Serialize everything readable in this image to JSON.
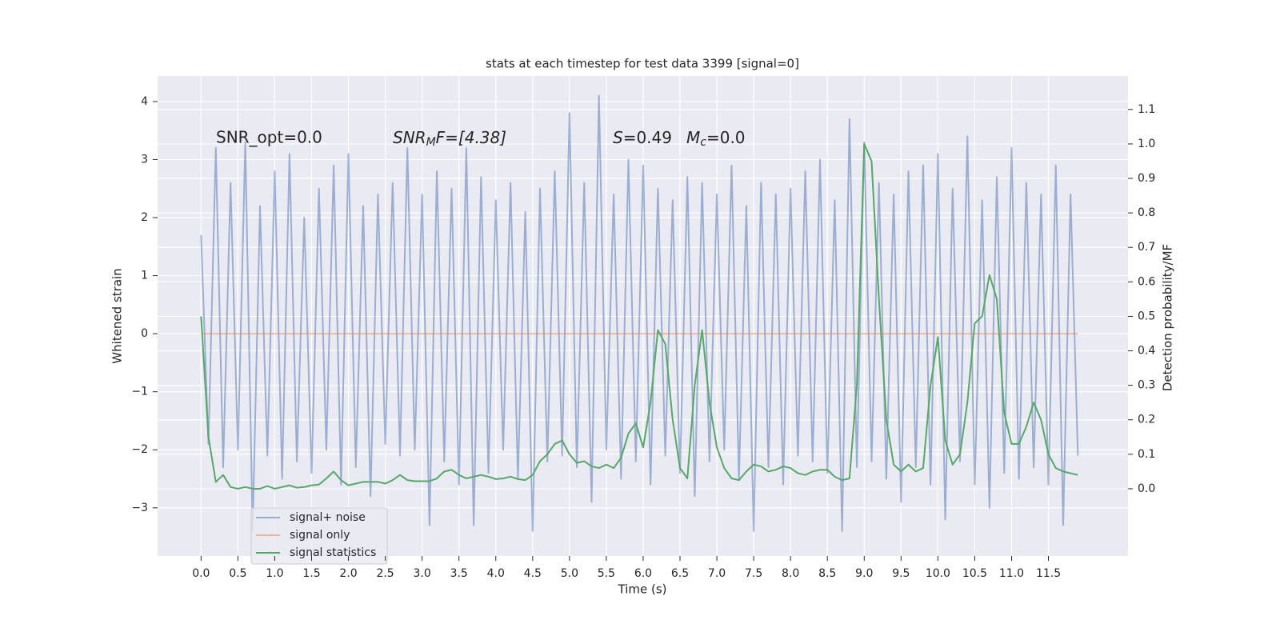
{
  "chart_data": {
    "type": "line",
    "title": "stats at each timestep for test data 3399 [signal=0]",
    "xlabel": "Time (s)",
    "ylabel": "Whitened strain",
    "y2label": "Detection probability/MF",
    "annotations": [
      {
        "text": "SNR_opt=0.0"
      },
      {
        "parts": [
          "SNR",
          "M",
          "F=[4.38]"
        ]
      },
      {
        "parts": [
          "S",
          "=0.49"
        ]
      },
      {
        "parts": [
          "M",
          "c",
          "=0.0"
        ]
      }
    ],
    "x": [
      0,
      0.1,
      0.2,
      0.3,
      0.4,
      0.5,
      0.6,
      0.7,
      0.8,
      0.9,
      1,
      1.1,
      1.2,
      1.3,
      1.4,
      1.5,
      1.6,
      1.7,
      1.8,
      1.9,
      2,
      2.1,
      2.2,
      2.3,
      2.4,
      2.5,
      2.6,
      2.7,
      2.8,
      2.9,
      3,
      3.1,
      3.2,
      3.3,
      3.4,
      3.5,
      3.6,
      3.7,
      3.8,
      3.9,
      4,
      4.1,
      4.2,
      4.3,
      4.4,
      4.5,
      4.6,
      4.7,
      4.8,
      4.9,
      5,
      5.1,
      5.2,
      5.3,
      5.4,
      5.5,
      5.6,
      5.7,
      5.8,
      5.9,
      6,
      6.1,
      6.2,
      6.3,
      6.4,
      6.5,
      6.6,
      6.7,
      6.8,
      6.9,
      7,
      7.1,
      7.2,
      7.3,
      7.4,
      7.5,
      7.6,
      7.7,
      7.8,
      7.9,
      8,
      8.1,
      8.2,
      8.3,
      8.4,
      8.5,
      8.6,
      8.7,
      8.8,
      8.9,
      9,
      9.1,
      9.2,
      9.3,
      9.4,
      9.5,
      9.6,
      9.7,
      9.8,
      9.9,
      10,
      10.1,
      10.2,
      10.3,
      10.4,
      10.5,
      10.6,
      10.7,
      10.8,
      10.9,
      11,
      11.1,
      11.2,
      11.3,
      11.4,
      11.5,
      11.6,
      11.7,
      11.8,
      11.9
    ],
    "series": [
      {
        "name": "signal+ noise",
        "color": "#4c72b0",
        "opacity": 0.5,
        "values": [
          1.7,
          -1.9,
          3.2,
          -2.3,
          2.6,
          -2.0,
          3.3,
          -3.4,
          2.2,
          -2.1,
          2.8,
          -2.5,
          3.1,
          -2.2,
          2.0,
          -2.4,
          2.5,
          -2.0,
          2.9,
          -2.6,
          3.1,
          -2.3,
          2.2,
          -2.8,
          2.4,
          -1.9,
          2.6,
          -2.1,
          3.2,
          -2.0,
          2.4,
          -3.3,
          2.8,
          -2.2,
          2.5,
          -2.6,
          3.2,
          -3.3,
          2.7,
          -2.4,
          2.3,
          -2.0,
          2.6,
          -2.5,
          2.1,
          -3.4,
          2.5,
          -2.2,
          2.8,
          -2.1,
          3.8,
          -2.3,
          2.6,
          -2.9,
          4.1,
          -2.0,
          2.4,
          -2.5,
          3.0,
          -2.2,
          2.9,
          -2.6,
          2.5,
          -2.1,
          2.3,
          -2.4,
          2.7,
          -2.8,
          2.6,
          -2.2,
          2.4,
          -2.0,
          2.9,
          -2.5,
          2.2,
          -3.4,
          2.6,
          -2.3,
          2.4,
          -2.6,
          2.5,
          -2.1,
          2.8,
          -2.2,
          3.0,
          -2.4,
          2.3,
          -3.4,
          3.7,
          -2.3,
          3.3,
          -2.2,
          2.6,
          -2.5,
          2.4,
          -2.9,
          2.8,
          -2.3,
          2.9,
          -2.6,
          3.1,
          -3.2,
          2.5,
          -2.2,
          3.4,
          -2.6,
          2.3,
          -3.0,
          2.7,
          -2.4,
          3.2,
          -2.5,
          2.6,
          -2.3,
          2.4,
          -2.6,
          2.9,
          -3.3,
          2.4,
          -2.1
        ]
      },
      {
        "name": "signal only",
        "color": "#dd8452",
        "opacity": 0.5,
        "values": [
          0,
          0,
          0,
          0,
          0,
          0,
          0,
          0,
          0,
          0,
          0,
          0,
          0,
          0,
          0,
          0,
          0,
          0,
          0,
          0,
          0,
          0,
          0,
          0,
          0,
          0,
          0,
          0,
          0,
          0,
          0,
          0,
          0,
          0,
          0,
          0,
          0,
          0,
          0,
          0,
          0,
          0,
          0,
          0,
          0,
          0,
          0,
          0,
          0,
          0,
          0,
          0,
          0,
          0,
          0,
          0,
          0,
          0,
          0,
          0,
          0,
          0,
          0,
          0,
          0,
          0,
          0,
          0,
          0,
          0,
          0,
          0,
          0,
          0,
          0,
          0,
          0,
          0,
          0,
          0,
          0,
          0,
          0,
          0,
          0,
          0,
          0,
          0,
          0,
          0,
          0,
          0,
          0,
          0,
          0,
          0,
          0,
          0,
          0,
          0,
          0,
          0,
          0,
          0,
          0,
          0,
          0,
          0,
          0,
          0,
          0,
          0,
          0,
          0,
          0,
          0,
          0,
          0,
          0,
          0
        ]
      },
      {
        "name": "signal statistics",
        "color": "#55a868",
        "opacity": 1,
        "axis": "y2",
        "values": [
          0.5,
          0.15,
          0.02,
          0.04,
          0.005,
          0,
          0.005,
          0,
          0,
          0.008,
          0,
          0.005,
          0.01,
          0.003,
          0.005,
          0.01,
          0.012,
          0.03,
          0.05,
          0.025,
          0.01,
          0.015,
          0.02,
          0.02,
          0.02,
          0.015,
          0.025,
          0.04,
          0.025,
          0.022,
          0.022,
          0.022,
          0.03,
          0.05,
          0.055,
          0.04,
          0.03,
          0.035,
          0.04,
          0.035,
          0.028,
          0.03,
          0.035,
          0.028,
          0.025,
          0.04,
          0.08,
          0.1,
          0.13,
          0.14,
          0.1,
          0.075,
          0.08,
          0.065,
          0.06,
          0.07,
          0.06,
          0.09,
          0.16,
          0.19,
          0.12,
          0.25,
          0.46,
          0.42,
          0.2,
          0.06,
          0.03,
          0.3,
          0.46,
          0.25,
          0.12,
          0.06,
          0.03,
          0.025,
          0.05,
          0.07,
          0.065,
          0.05,
          0.055,
          0.065,
          0.06,
          0.045,
          0.04,
          0.05,
          0.055,
          0.055,
          0.035,
          0.025,
          0.03,
          0.3,
          1.0,
          0.95,
          0.55,
          0.2,
          0.07,
          0.05,
          0.07,
          0.05,
          0.06,
          0.3,
          0.44,
          0.14,
          0.07,
          0.1,
          0.25,
          0.48,
          0.5,
          0.62,
          0.55,
          0.22,
          0.13,
          0.13,
          0.18,
          0.25,
          0.2,
          0.1,
          0.06,
          0.05,
          0.045,
          0.04
        ]
      }
    ],
    "xlim": [
      -0.59,
      12.58
    ],
    "xticks": [
      {
        "value": 0,
        "label": "0.0"
      },
      {
        "value": 0.5,
        "label": "0.5"
      },
      {
        "value": 1,
        "label": "1.0"
      },
      {
        "value": 1.5,
        "label": "1.5"
      },
      {
        "value": 2,
        "label": "2.0"
      },
      {
        "value": 2.5,
        "label": "2.5"
      },
      {
        "value": 3,
        "label": "3.0"
      },
      {
        "value": 3.5,
        "label": "3.5"
      },
      {
        "value": 4,
        "label": "4.0"
      },
      {
        "value": 4.5,
        "label": "4.5"
      },
      {
        "value": 5,
        "label": "5.0"
      },
      {
        "value": 5.5,
        "label": "5.5"
      },
      {
        "value": 6,
        "label": "6.0"
      },
      {
        "value": 6.5,
        "label": "6.5"
      },
      {
        "value": 7,
        "label": "7.0"
      },
      {
        "value": 7.5,
        "label": "7.5"
      },
      {
        "value": 8,
        "label": "8.0"
      },
      {
        "value": 8.5,
        "label": "8.5"
      },
      {
        "value": 9,
        "label": "9.0"
      },
      {
        "value": 9.5,
        "label": "9.5"
      },
      {
        "value": 10,
        "label": "10.0"
      },
      {
        "value": 10.5,
        "label": "10.5"
      },
      {
        "value": 11,
        "label": "11.0"
      },
      {
        "value": 11.5,
        "label": "11.5"
      }
    ],
    "ylim": [
      -3.83,
      4.44
    ],
    "yticks": [
      {
        "value": -3,
        "label": "−3"
      },
      {
        "value": -2,
        "label": "−2"
      },
      {
        "value": -1,
        "label": "−1"
      },
      0,
      1,
      2,
      3,
      4
    ],
    "y2lim": [
      -0.195,
      1.197
    ],
    "y2ticks": [
      {
        "value": 0,
        "label": "0.0"
      },
      {
        "value": 0.1,
        "label": "0.1"
      },
      {
        "value": 0.2,
        "label": "0.2"
      },
      {
        "value": 0.3,
        "label": "0.3"
      },
      {
        "value": 0.4,
        "label": "0.4"
      },
      {
        "value": 0.5,
        "label": "0.5"
      },
      {
        "value": 0.6,
        "label": "0.6"
      },
      {
        "value": 0.7,
        "label": "0.7"
      },
      {
        "value": 0.8,
        "label": "0.8"
      },
      {
        "value": 0.9,
        "label": "0.9"
      },
      {
        "value": 1,
        "label": "1.0"
      },
      {
        "value": 1.1,
        "label": "1.1"
      }
    ],
    "grid": true,
    "legend": "lower left"
  }
}
